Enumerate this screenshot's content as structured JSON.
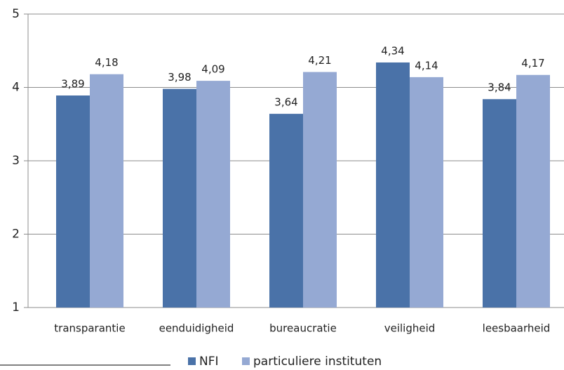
{
  "chart_data": {
    "type": "bar",
    "categories": [
      "transparantie",
      "eenduidigheid",
      "bureaucratie",
      "veiligheid",
      "leesbaarheid"
    ],
    "series": [
      {
        "name": "NFI",
        "color": "#4a72a8",
        "values": [
          3.89,
          3.98,
          3.64,
          4.34,
          3.84
        ],
        "value_labels": [
          "3,89",
          "3,98",
          "3,64",
          "4,34",
          "3,84"
        ]
      },
      {
        "name": "particuliere instituten",
        "color": "#95a9d3",
        "values": [
          4.18,
          4.09,
          4.21,
          4.14,
          4.17
        ],
        "value_labels": [
          "4,18",
          "4,09",
          "4,21",
          "4,14",
          "4,17"
        ]
      }
    ],
    "ylim": [
      1,
      5
    ],
    "yticks": [
      1,
      2,
      3,
      4,
      5
    ],
    "grid": true
  }
}
